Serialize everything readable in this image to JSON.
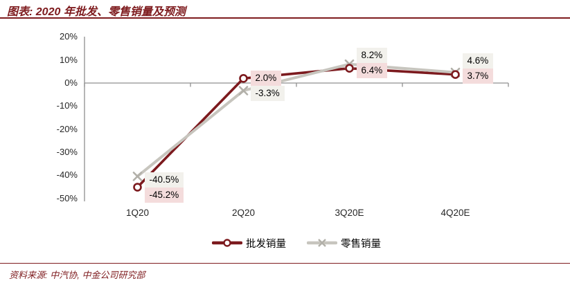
{
  "title": "图表: 2020 年批发、零售销量及预测",
  "source": "资料来源: 中汽协, 中金公司研究部",
  "colors": {
    "maroon": "#7E1B1E",
    "wholesale_line": "#7C1A1E",
    "retail_line": "#C7C5BE",
    "retail_marker": "#B2B0A9",
    "axis": "#8F8F8F",
    "label_bg_wholesale": "#F4DCDC",
    "label_bg_retail": "#F2F1EC"
  },
  "chart_data": {
    "type": "line",
    "categories": [
      "1Q20",
      "2Q20",
      "3Q20E",
      "4Q20E"
    ],
    "series": [
      {
        "name": "批发销量",
        "marker": "circle",
        "color": "#7C1A1E",
        "values": [
          -45.2,
          2.0,
          6.4,
          3.7
        ],
        "labels": [
          "-45.2%",
          "2.0%",
          "6.4%",
          "3.7%"
        ]
      },
      {
        "name": "零售销量",
        "marker": "x",
        "color": "#C7C5BE",
        "values": [
          -40.5,
          -3.3,
          8.2,
          4.6
        ],
        "labels": [
          "-40.5%",
          "-3.3%",
          "8.2%",
          "4.6%"
        ]
      }
    ],
    "ylim": [
      -50,
      20
    ],
    "ytick_step": 10,
    "yticks": [
      20,
      10,
      0,
      -10,
      -20,
      -30,
      -40,
      -50
    ],
    "ytick_labels": [
      "20%",
      "10%",
      "0%",
      "-10%",
      "-20%",
      "-30%",
      "-40%",
      "-50%"
    ],
    "grid": false,
    "legend_position": "bottom"
  },
  "legend": {
    "items": [
      {
        "label": "批发销量"
      },
      {
        "label": "零售销量"
      }
    ]
  }
}
